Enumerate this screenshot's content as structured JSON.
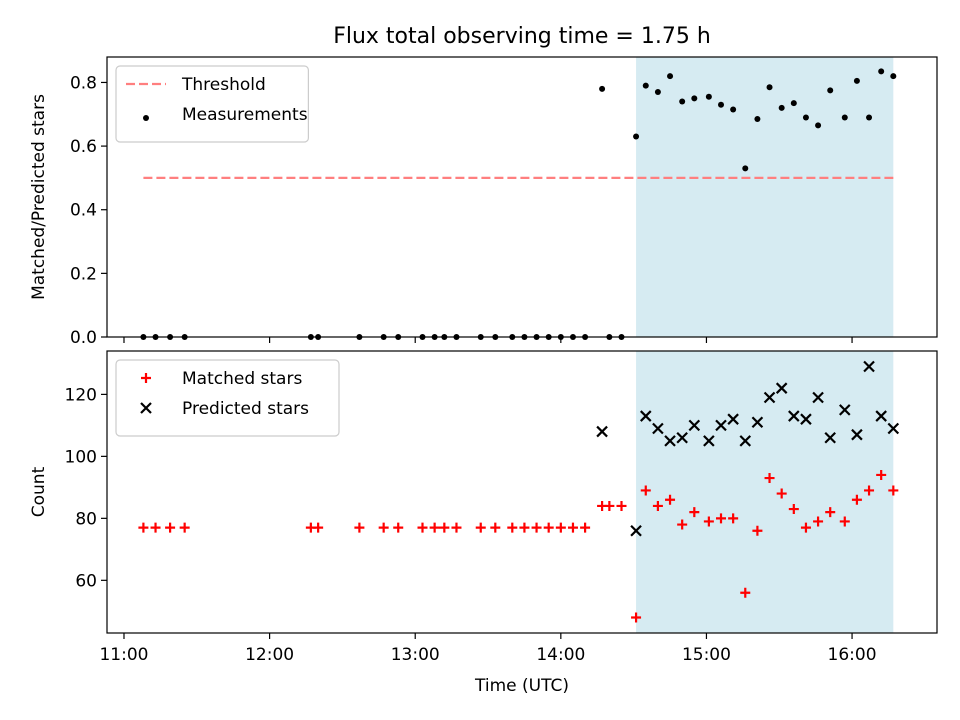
{
  "figure": {
    "title": "Flux total observing time = 1.75 h"
  },
  "chart_data": [
    {
      "type": "scatter",
      "panel": "top",
      "xlabel": "",
      "ylabel": "Matched/Predicted stars",
      "xlim": [
        "10:53",
        "16:35"
      ],
      "ylim": [
        0,
        0.88
      ],
      "yticks": [
        0.0,
        0.2,
        0.4,
        0.6,
        0.8
      ],
      "ytick_labels": [
        "0.0",
        "0.2",
        "0.4",
        "0.6",
        "0.8"
      ],
      "legend_position": "top-left",
      "shaded_span": {
        "start": "14:31",
        "end": "16:17",
        "color": "#add8e6"
      },
      "threshold": {
        "name": "Threshold",
        "y": 0.5,
        "x_start": "11:08",
        "x_end": "16:17",
        "color": "#ff7f7f"
      },
      "series": [
        {
          "name": "Measurements",
          "marker": "dot",
          "color": "#000000",
          "x": [
            "11:08",
            "11:13",
            "11:19",
            "11:25",
            "12:17",
            "12:20",
            "12:37",
            "12:47",
            "12:53",
            "13:03",
            "13:08",
            "13:12",
            "13:17",
            "13:27",
            "13:33",
            "13:40",
            "13:45",
            "13:50",
            "13:55",
            "14:00",
            "14:05",
            "14:10",
            "14:20",
            "14:25",
            "14:17",
            "14:31",
            "14:35",
            "14:40",
            "14:45",
            "14:50",
            "14:55",
            "15:01",
            "15:06",
            "15:11",
            "15:16",
            "15:21",
            "15:26",
            "15:31",
            "15:36",
            "15:41",
            "15:46",
            "15:51",
            "15:57",
            "16:02",
            "16:07",
            "16:12",
            "16:17"
          ],
          "y": [
            0,
            0,
            0,
            0,
            0,
            0,
            0,
            0,
            0,
            0,
            0,
            0,
            0,
            0,
            0,
            0,
            0,
            0,
            0,
            0,
            0,
            0,
            0,
            0,
            0.78,
            0.63,
            0.79,
            0.77,
            0.82,
            0.74,
            0.75,
            0.755,
            0.73,
            0.715,
            0.53,
            0.685,
            0.785,
            0.72,
            0.735,
            0.69,
            0.665,
            0.775,
            0.69,
            0.805,
            0.69,
            0.835,
            0.82
          ]
        }
      ]
    },
    {
      "type": "scatter",
      "panel": "bottom",
      "xlabel": "Time (UTC)",
      "ylabel": "Count",
      "xlim": [
        "10:53",
        "16:35"
      ],
      "ylim": [
        43,
        134
      ],
      "xticks": [
        "11:00",
        "12:00",
        "13:00",
        "14:00",
        "15:00",
        "16:00"
      ],
      "yticks": [
        60,
        80,
        100,
        120
      ],
      "ytick_labels": [
        "60",
        "80",
        "100",
        "120"
      ],
      "legend_position": "top-left",
      "shaded_span": {
        "start": "14:31",
        "end": "16:17",
        "color": "#add8e6"
      },
      "series": [
        {
          "name": "Matched stars",
          "marker": "plus",
          "color": "#ff0000",
          "x": [
            "11:08",
            "11:13",
            "11:19",
            "11:25",
            "12:17",
            "12:20",
            "12:37",
            "12:47",
            "12:53",
            "13:03",
            "13:08",
            "13:12",
            "13:17",
            "13:27",
            "13:33",
            "13:40",
            "13:45",
            "13:50",
            "13:55",
            "14:00",
            "14:05",
            "14:10",
            "14:17",
            "14:20",
            "14:25",
            "14:31",
            "14:35",
            "14:40",
            "14:45",
            "14:50",
            "14:55",
            "15:01",
            "15:06",
            "15:11",
            "15:16",
            "15:21",
            "15:26",
            "15:31",
            "15:36",
            "15:41",
            "15:46",
            "15:51",
            "15:57",
            "16:02",
            "16:07",
            "16:12",
            "16:17"
          ],
          "y": [
            77,
            77,
            77,
            77,
            77,
            77,
            77,
            77,
            77,
            77,
            77,
            77,
            77,
            77,
            77,
            77,
            77,
            77,
            77,
            77,
            77,
            77,
            84,
            84,
            84,
            48,
            89,
            84,
            86,
            78,
            82,
            79,
            80,
            80,
            56,
            76,
            93,
            88,
            83,
            77,
            79,
            82,
            79,
            86,
            89,
            94,
            89
          ]
        },
        {
          "name": "Predicted stars",
          "marker": "x",
          "color": "#000000",
          "x": [
            "14:17",
            "14:31",
            "14:35",
            "14:40",
            "14:45",
            "14:50",
            "14:55",
            "15:01",
            "15:06",
            "15:11",
            "15:16",
            "15:21",
            "15:26",
            "15:31",
            "15:36",
            "15:41",
            "15:46",
            "15:51",
            "15:57",
            "16:02",
            "16:07",
            "16:12",
            "16:17"
          ],
          "y": [
            108,
            76,
            113,
            109,
            105,
            106,
            110,
            105,
            110,
            112,
            105,
            111,
            119,
            122,
            113,
            112,
            119,
            106,
            115,
            107,
            129,
            113,
            109
          ]
        }
      ]
    }
  ]
}
